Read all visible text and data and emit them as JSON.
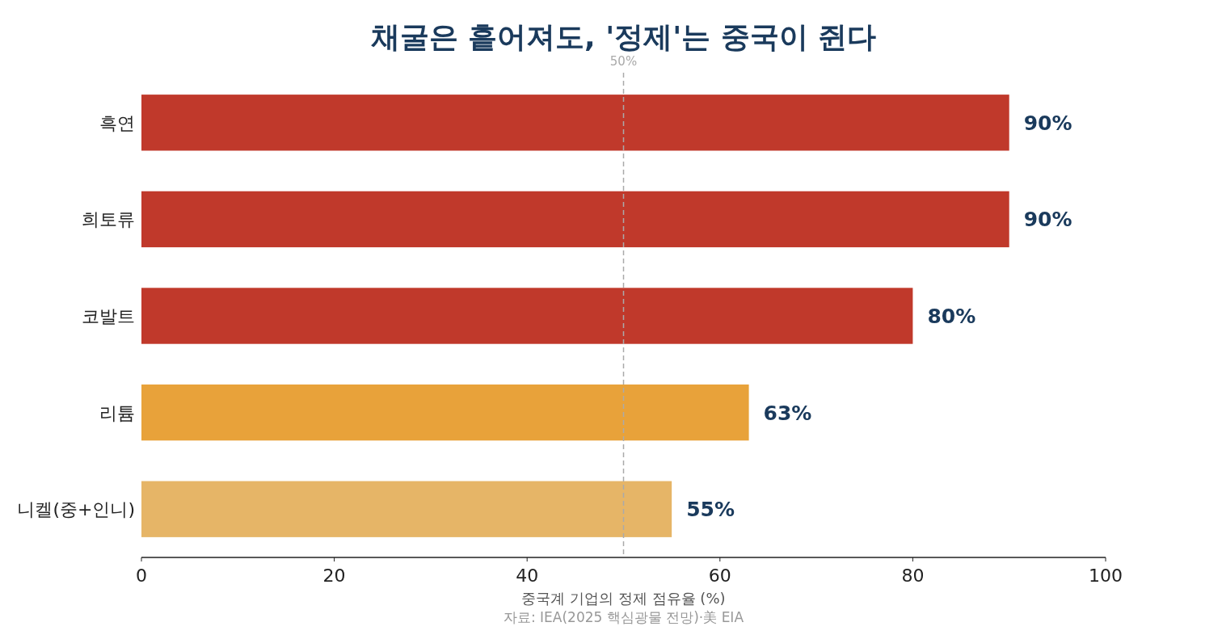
{
  "chart_data": {
    "type": "bar",
    "orientation": "horizontal",
    "title": "채굴은 흩어져도, '정제'는 중국이 쥔다",
    "xlabel": "중국계 기업의 정제 점유율 (%)",
    "categories": [
      "흑연",
      "희토류",
      "코발트",
      "리튬",
      "니켈(중+인니)"
    ],
    "values": [
      90,
      90,
      80,
      63,
      55
    ],
    "colors": [
      "#c0392b",
      "#c0392b",
      "#c0392b",
      "#e8a23a",
      "#e6b567"
    ],
    "value_labels": [
      "90%",
      "90%",
      "80%",
      "63%",
      "55%"
    ],
    "xlim": [
      0,
      100
    ],
    "xticks": [
      0,
      20,
      40,
      60,
      80,
      100
    ],
    "ref_lines": [
      {
        "axis": "x",
        "value": 50,
        "label": "50%",
        "color": "#aaaaaa",
        "line_style": "dashed"
      }
    ],
    "annotations": [
      "자료: IEA(2025 핵심광물 전망)·美 EIA"
    ]
  }
}
